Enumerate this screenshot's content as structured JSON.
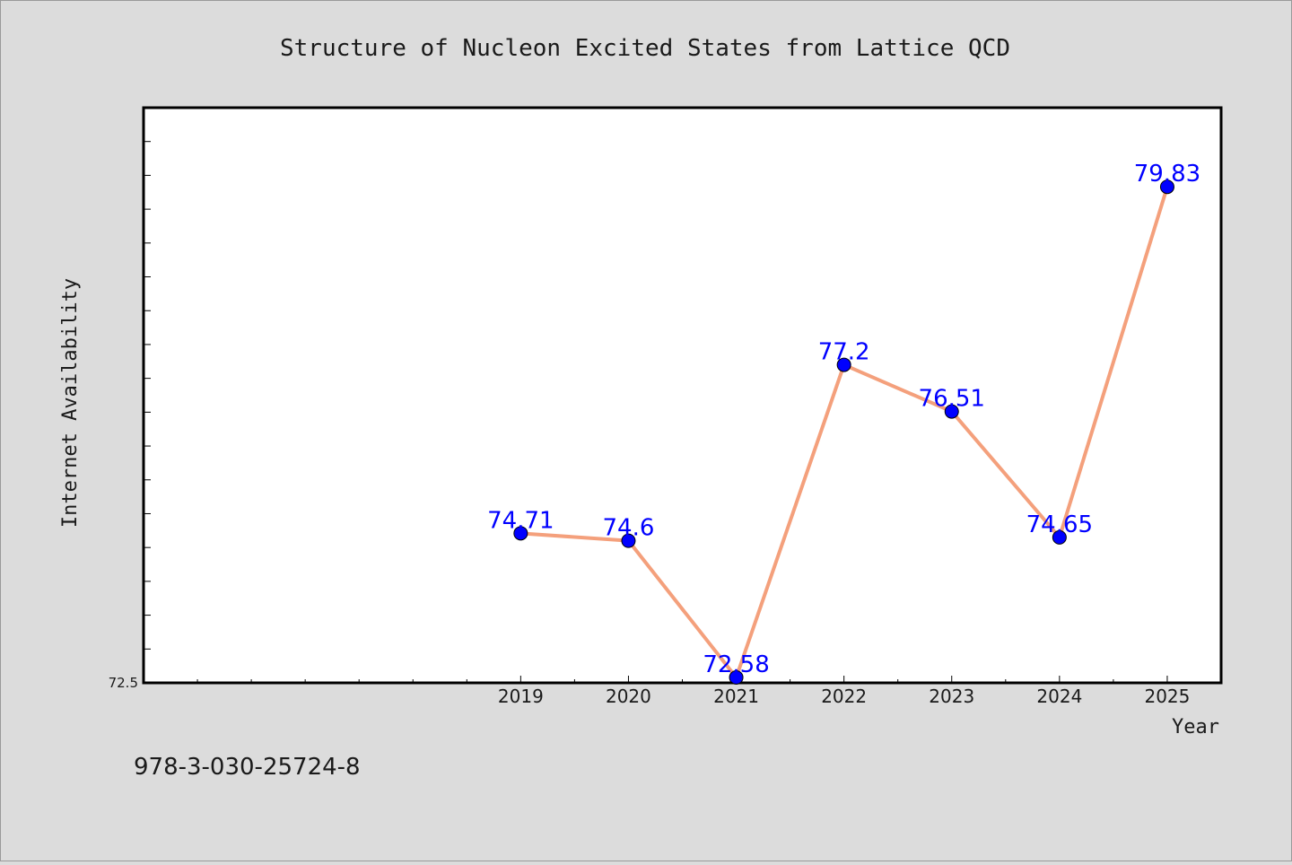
{
  "chart_data": {
    "type": "line",
    "title": "Structure of Nucleon Excited States from Lattice QCD",
    "xlabel": "Year",
    "ylabel": "Internet Availability",
    "x": [
      "2019",
      "2020",
      "2021",
      "2022",
      "2023",
      "2024",
      "2025"
    ],
    "values": [
      74.71,
      74.6,
      72.58,
      77.2,
      76.51,
      74.65,
      79.83
    ],
    "data_labels": [
      "74.71",
      "74.6",
      "72.58",
      "77.2",
      "76.51",
      "74.65",
      "79.83"
    ],
    "ylim": [
      72.5,
      81.0
    ],
    "xlim": [
      2015.5,
      2025.5
    ],
    "y_tick_labels": [
      "72.5"
    ],
    "line_color": "#f4a07c",
    "marker_color": "#0000ff",
    "grid": false
  },
  "footer_text": "978-3-030-25724-8"
}
